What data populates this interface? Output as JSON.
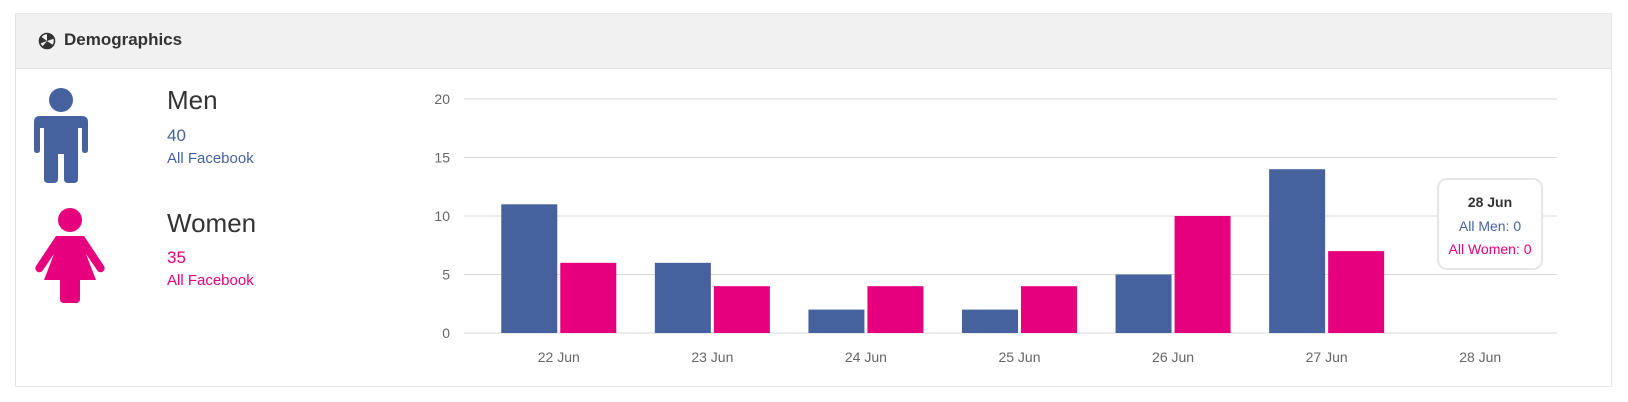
{
  "header": {
    "title": "Demographics",
    "icon": "pie-chart-icon"
  },
  "men": {
    "label": "Men",
    "count": "40",
    "source": "All Facebook",
    "color": "#46629e",
    "icon": "male-person-icon"
  },
  "women": {
    "label": "Women",
    "count": "35",
    "source": "All Facebook",
    "color": "#e6007e",
    "icon": "female-person-icon"
  },
  "chart_data": {
    "type": "bar",
    "categories": [
      "22 Jun",
      "23 Jun",
      "24 Jun",
      "25 Jun",
      "26 Jun",
      "27 Jun",
      "28 Jun"
    ],
    "series": [
      {
        "name": "All Men",
        "color": "#46629e",
        "values": [
          11,
          6,
          2,
          2,
          5,
          14,
          0
        ]
      },
      {
        "name": "All Women",
        "color": "#e6007e",
        "values": [
          6,
          4,
          4,
          4,
          10,
          7,
          0
        ]
      }
    ],
    "ylim": [
      0,
      20
    ],
    "yticks": [
      0,
      5,
      10,
      15,
      20
    ],
    "grid": true
  },
  "tooltip": {
    "title": "28 Jun",
    "men": "All Men: 0",
    "women": "All Women: 0"
  }
}
